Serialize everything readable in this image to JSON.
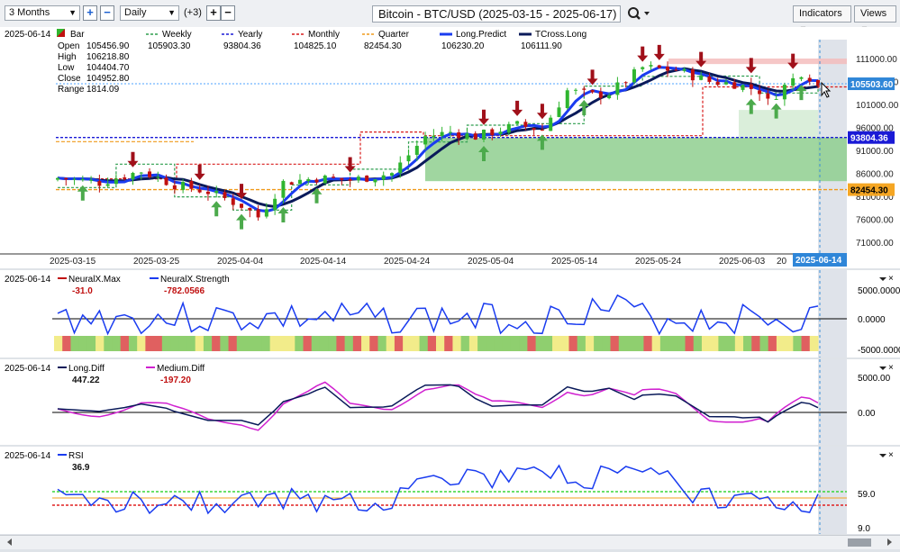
{
  "toolbar": {
    "period": "3 Months",
    "interval": "Daily",
    "interval_extra": "(+3)",
    "title": "Bitcoin - BTC/USD (2025-03-15 - 2025-06-17)",
    "indicators_label": "Indicators",
    "views_label": "Views"
  },
  "main": {
    "date": "2025-06-14",
    "bar_label": "Bar",
    "ohlc": [
      {
        "label": "Open",
        "value": "105456.90"
      },
      {
        "label": "High",
        "value": "106218.80"
      },
      {
        "label": "Low",
        "value": "104404.70"
      },
      {
        "label": "Close",
        "value": "104952.80"
      },
      {
        "label": "Range",
        "value": "1814.09"
      }
    ],
    "legend": [
      {
        "name": "Weekly",
        "value": "105903.30",
        "color": "#2e9e4f"
      },
      {
        "name": "Yearly",
        "value": "93804.36",
        "color": "#1a1ad6"
      },
      {
        "name": "Monthly",
        "value": "104825.10",
        "color": "#d81c1c"
      },
      {
        "name": "Quarter",
        "value": "82454.30",
        "color": "#f09a1a"
      },
      {
        "name": "Long.Predict",
        "value": "106230.20",
        "color": "#1a3cf0"
      },
      {
        "name": "TCross.Long",
        "value": "106111.90",
        "color": "#0a1a5a"
      }
    ],
    "y_ticks": [
      "111000.00",
      "106000.00",
      "101000.00",
      "96000.00",
      "91000.00",
      "86000.00",
      "81000.00",
      "76000.00",
      "71000.00"
    ],
    "y_values": [
      111000,
      106000,
      101000,
      96000,
      91000,
      86000,
      81000,
      76000,
      71000
    ],
    "x_ticks": [
      "2025-03-15",
      "2025-03-25",
      "2025-04-04",
      "2025-04-14",
      "2025-04-24",
      "2025-05-04",
      "2025-05-14",
      "2025-05-24",
      "2025-06-03",
      "20"
    ],
    "price_badge": "105503.60",
    "yearly_badge": "93804.36",
    "quarter_badge": "82454.30",
    "cursor_date": "2025-06-14",
    "colors": {
      "up": "#2fb52f",
      "down": "#c01010",
      "zone": "#8fcf8f"
    }
  },
  "neural": {
    "date": "2025-06-14",
    "series": [
      {
        "name": "NeuralX.Max",
        "value": "-31.0",
        "color": "#c01010"
      },
      {
        "name": "NeuralX.Strength",
        "value": "-782.0566",
        "color": "#1a3cf0"
      }
    ],
    "y_ticks": [
      "5000.0000",
      "0.0000",
      "-5000.0000"
    ]
  },
  "diff": {
    "date": "2025-06-14",
    "series": [
      {
        "name": "Long.Diff",
        "value": "447.22",
        "color": "#0a1a5a"
      },
      {
        "name": "Medium.Diff",
        "value": "-197.20",
        "color": "#d020d0"
      }
    ],
    "y_ticks": [
      "5000.00",
      "0.00"
    ]
  },
  "rsi": {
    "date": "2025-06-14",
    "series": [
      {
        "name": "RSI",
        "value": "36.9",
        "color": "#1a3cf0"
      }
    ],
    "y_ticks": [
      "59.0",
      "9.0"
    ]
  }
}
